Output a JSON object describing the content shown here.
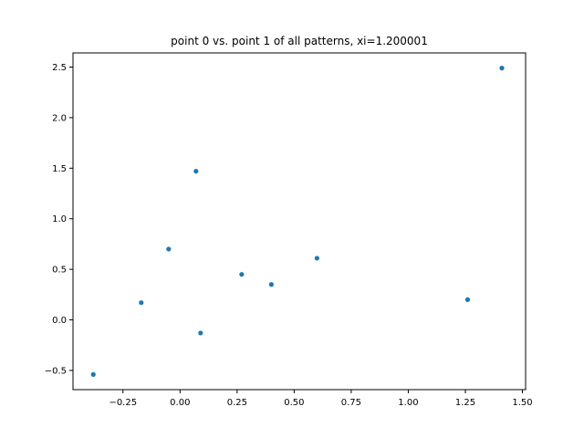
{
  "chart_data": {
    "type": "scatter",
    "title": "point 0 vs. point 1 of all patterns, xi=1.200001",
    "xlabel": "",
    "ylabel": "",
    "xlim": [
      -0.469,
      1.514
    ],
    "ylim": [
      -0.69,
      2.64
    ],
    "x_ticks": [
      -0.25,
      0.0,
      0.25,
      0.5,
      0.75,
      1.0,
      1.25,
      1.5
    ],
    "x_tick_labels": [
      "−0.25",
      "0.00",
      "0.25",
      "0.50",
      "0.75",
      "1.00",
      "1.25",
      "1.50"
    ],
    "y_ticks": [
      -0.5,
      0.0,
      0.5,
      1.0,
      1.5,
      2.0,
      2.5
    ],
    "y_tick_labels": [
      "−0.5",
      "0.0",
      "0.5",
      "1.0",
      "1.5",
      "2.0",
      "2.5"
    ],
    "grid": false,
    "legend": "none",
    "marker_color": "#1f77b4",
    "points": [
      {
        "x": -0.38,
        "y": -0.54
      },
      {
        "x": -0.17,
        "y": 0.17
      },
      {
        "x": -0.05,
        "y": 0.7
      },
      {
        "x": 0.07,
        "y": 1.47
      },
      {
        "x": 0.09,
        "y": -0.13
      },
      {
        "x": 0.27,
        "y": 0.45
      },
      {
        "x": 0.4,
        "y": 0.35
      },
      {
        "x": 0.6,
        "y": 0.61
      },
      {
        "x": 1.26,
        "y": 0.2
      },
      {
        "x": 1.41,
        "y": 2.49
      }
    ]
  }
}
